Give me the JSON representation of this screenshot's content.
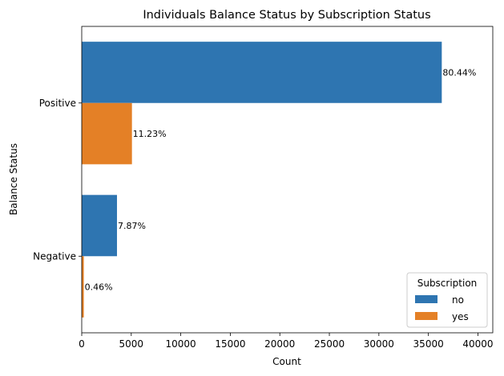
{
  "chart_data": {
    "type": "bar",
    "orientation": "horizontal",
    "title": "Individuals Balance Status by Subscription Status",
    "xlabel": "Count",
    "ylabel": "Balance Status",
    "categories": [
      "Positive",
      "Negative"
    ],
    "series": [
      {
        "name": "no",
        "color": "#2e75b1",
        "values": [
          36350,
          3560
        ],
        "labels": [
          "80.44%",
          "7.87%"
        ]
      },
      {
        "name": "yes",
        "color": "#e48026",
        "values": [
          5070,
          210
        ],
        "labels": [
          "11.23%",
          "0.46%"
        ]
      }
    ],
    "xlim": [
      0,
      41500
    ],
    "xticks": [
      0,
      5000,
      10000,
      15000,
      20000,
      25000,
      30000,
      35000,
      40000
    ],
    "xtick_labels": [
      "0",
      "5000",
      "10000",
      "15000",
      "20000",
      "25000",
      "30000",
      "35000",
      "40000"
    ],
    "legend": {
      "title": "Subscription",
      "position": "lower-right"
    },
    "grid": false
  }
}
